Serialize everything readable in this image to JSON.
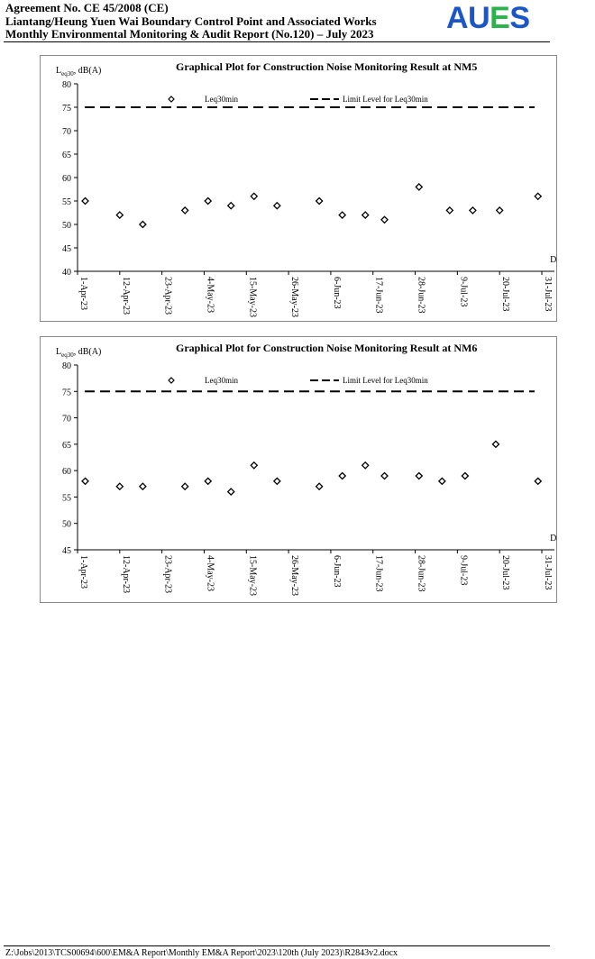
{
  "header": {
    "line1": "Agreement No. CE 45/2008 (CE)",
    "line2": "Liantang/Heung Yuen Wai Boundary Control Point and Associated Works",
    "line3": "Monthly Environmental Monitoring & Audit Report (No.120) – July 2023",
    "logo": {
      "a": "A",
      "u": "U",
      "e": "E",
      "s": "S",
      "color_blue": "#1a56c8",
      "color_green": "#27b44a"
    }
  },
  "chart_data": [
    {
      "type": "scatter",
      "title": "Graphical Plot for Construction Noise Monitoring Result at NM5",
      "ylabel": "Leq30, dB(A)",
      "xlabel": "Date",
      "ylim": [
        40,
        80
      ],
      "yticks": [
        40,
        45,
        50,
        55,
        60,
        65,
        70,
        75,
        80
      ],
      "xticks": [
        "1-Apr-23",
        "12-Apr-23",
        "23-Apr-23",
        "4-May-23",
        "15-May-23",
        "26-May-23",
        "6-Jun-23",
        "17-Jun-23",
        "28-Jun-23",
        "9-Jul-23",
        "20-Jul-23",
        "31-Jul-23"
      ],
      "xlim": [
        "2023-04-01",
        "2023-07-31"
      ],
      "series": [
        {
          "name": "Leq30min",
          "marker": "diamond",
          "x": [
            "2023-04-03",
            "2023-04-12",
            "2023-04-18",
            "2023-04-29",
            "2023-05-05",
            "2023-05-11",
            "2023-05-17",
            "2023-05-23",
            "2023-06-03",
            "2023-06-09",
            "2023-06-15",
            "2023-06-20",
            "2023-06-29",
            "2023-07-07",
            "2023-07-13",
            "2023-07-20",
            "2023-07-30"
          ],
          "y": [
            55,
            52,
            50,
            53,
            55,
            54,
            56,
            54,
            55,
            52,
            52,
            51,
            58,
            53,
            53,
            53,
            56
          ]
        }
      ],
      "limit": {
        "name": "Limit Level for Leq30min",
        "value": 75
      }
    },
    {
      "type": "scatter",
      "title": "Graphical Plot for Construction Noise Monitoring Result at NM6",
      "ylabel": "Leq30, dB(A)",
      "xlabel": "Date",
      "ylim": [
        45,
        80
      ],
      "yticks": [
        45,
        50,
        55,
        60,
        65,
        70,
        75,
        80
      ],
      "xticks": [
        "1-Apr-23",
        "12-Apr-23",
        "23-Apr-23",
        "4-May-23",
        "15-May-23",
        "26-May-23",
        "6-Jun-23",
        "17-Jun-23",
        "28-Jun-23",
        "9-Jul-23",
        "20-Jul-23",
        "31-Jul-23"
      ],
      "xlim": [
        "2023-04-01",
        "2023-07-31"
      ],
      "series": [
        {
          "name": "Leq30min",
          "marker": "diamond",
          "x": [
            "2023-04-03",
            "2023-04-12",
            "2023-04-18",
            "2023-04-29",
            "2023-05-05",
            "2023-05-11",
            "2023-05-17",
            "2023-05-23",
            "2023-06-03",
            "2023-06-09",
            "2023-06-15",
            "2023-06-20",
            "2023-06-29",
            "2023-07-05",
            "2023-07-11",
            "2023-07-19",
            "2023-07-30"
          ],
          "y": [
            58,
            57,
            57,
            57,
            58,
            56,
            61,
            58,
            57,
            59,
            61,
            59,
            59,
            58,
            59,
            65,
            58
          ]
        }
      ],
      "limit": {
        "name": "Limit Level for Leq30min",
        "value": 75
      }
    }
  ],
  "footer": {
    "path": "Z:\\Jobs\\2013\\TCS00694\\600\\EM&A Report\\Monthly EM&A Report\\2023\\120th (July 2023)\\R2843v2.docx"
  }
}
